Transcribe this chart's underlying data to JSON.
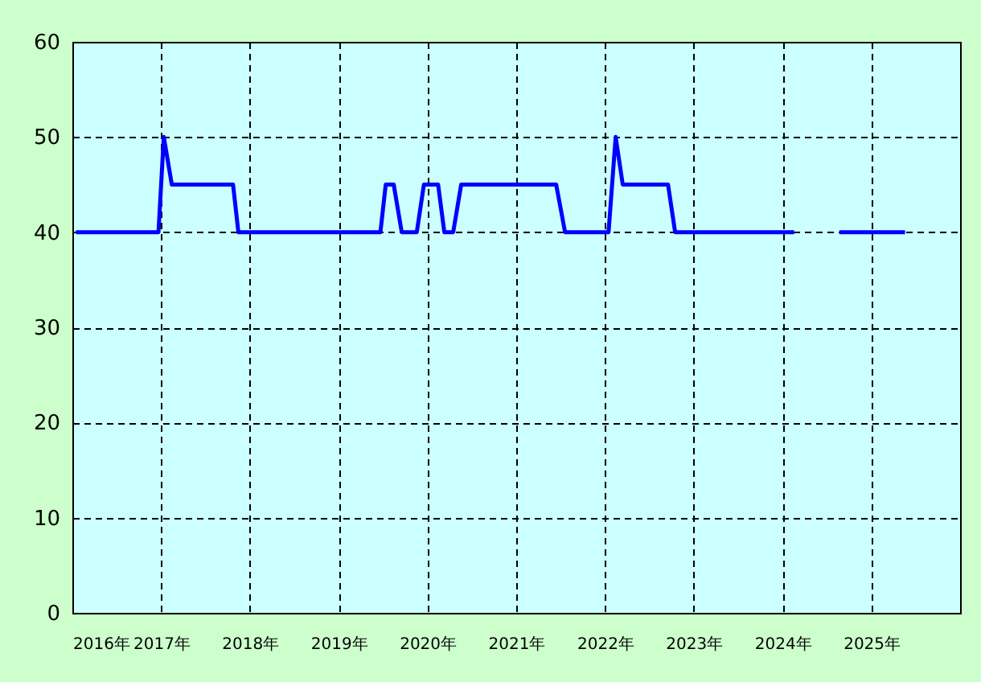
{
  "chart_data": {
    "type": "line",
    "x": [
      2016.04,
      2016.97,
      2017.03,
      2017.12,
      2017.81,
      2017.87,
      2019.47,
      2019.53,
      2019.62,
      2019.71,
      2019.88,
      2019.96,
      2020.12,
      2020.19,
      2020.29,
      2020.38,
      2021.45,
      2021.55,
      2022.04,
      2022.12,
      2022.2,
      2022.71,
      2022.79,
      2024.13,
      2024.4,
      2024.64,
      2025.38
    ],
    "series": [
      {
        "color": "#0000ff",
        "values": [
          40,
          40,
          50,
          45,
          45,
          40,
          40,
          45,
          45,
          40,
          40,
          45,
          45,
          40,
          40,
          45,
          45,
          40,
          40,
          50,
          45,
          45,
          40,
          40,
          null,
          40,
          40
        ]
      }
    ],
    "xlim": [
      2016,
      2026
    ],
    "xticks": [
      {
        "value": 2016,
        "label": "2016年"
      },
      {
        "value": 2017,
        "label": "2017年"
      },
      {
        "value": 2018,
        "label": "2018年"
      },
      {
        "value": 2019,
        "label": "2019年"
      },
      {
        "value": 2020,
        "label": "2020年"
      },
      {
        "value": 2021,
        "label": "2021年"
      },
      {
        "value": 2022,
        "label": "2022年"
      },
      {
        "value": 2023,
        "label": "2023年"
      },
      {
        "value": 2024,
        "label": "2024年"
      },
      {
        "value": 2025,
        "label": "2025年"
      }
    ],
    "ylim": [
      0,
      60
    ],
    "yticks": [
      0,
      10,
      20,
      30,
      40,
      50,
      60
    ],
    "grid": true,
    "marker": "none",
    "line_style": "solid"
  }
}
